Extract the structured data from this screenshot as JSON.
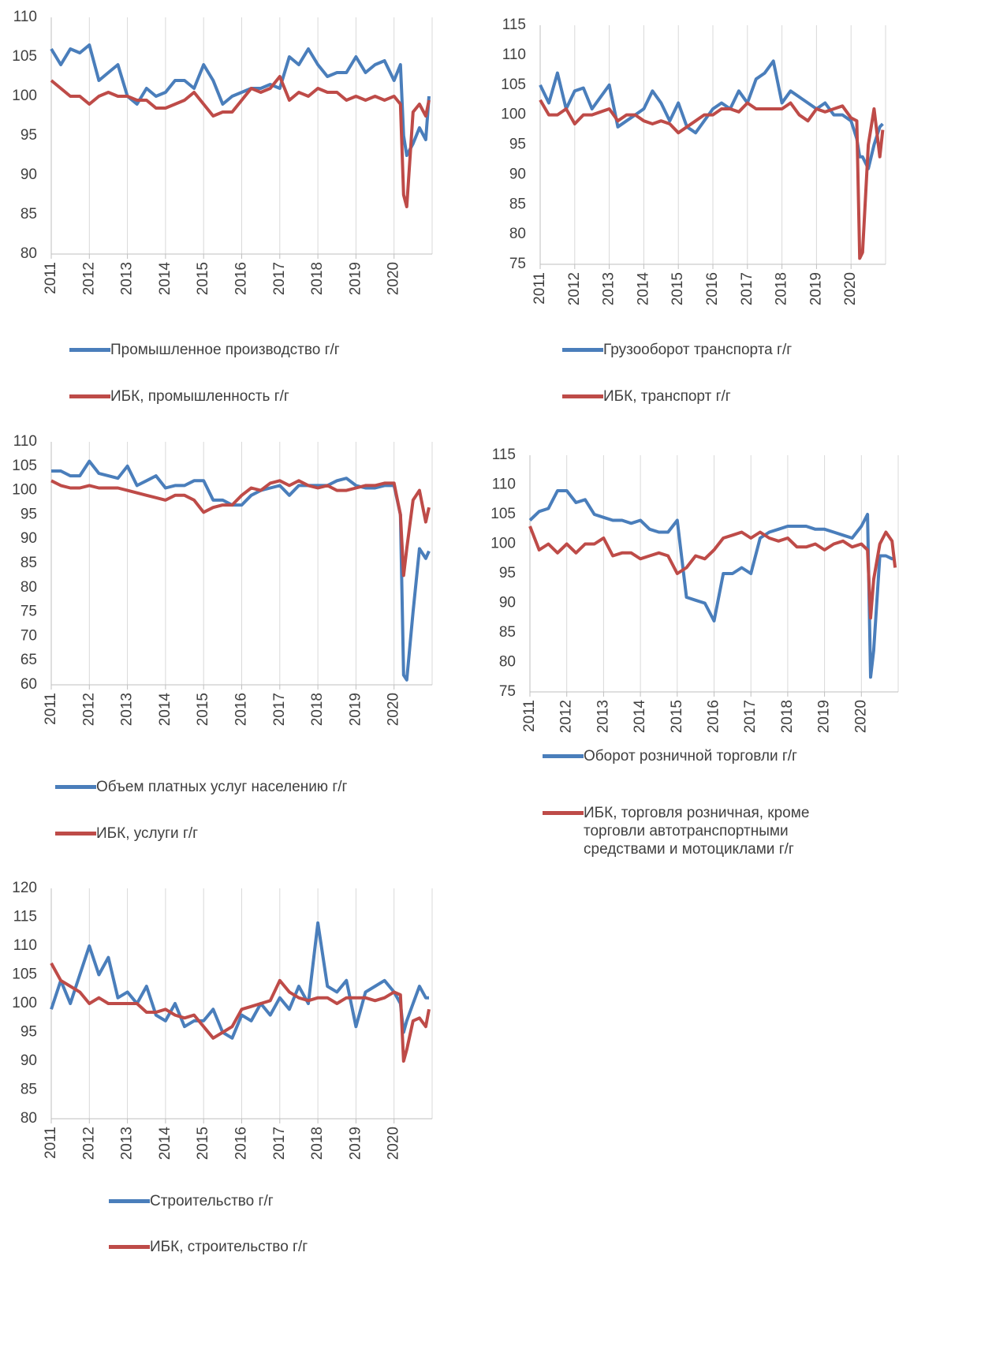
{
  "chart_data": [
    {
      "type": "line",
      "xlim": [
        2011,
        2021
      ],
      "ylim": [
        80,
        110
      ],
      "xticks": [
        2011,
        2012,
        2013,
        2014,
        2015,
        2016,
        2017,
        2018,
        2019,
        2020
      ],
      "yticks": [
        80,
        85,
        90,
        95,
        100,
        105,
        110
      ],
      "grid": true,
      "x": [
        2011,
        2011.25,
        2011.5,
        2011.75,
        2012,
        2012.25,
        2012.5,
        2012.75,
        2013,
        2013.25,
        2013.5,
        2013.75,
        2014,
        2014.25,
        2014.5,
        2014.75,
        2015,
        2015.25,
        2015.5,
        2015.75,
        2016,
        2016.25,
        2016.5,
        2016.75,
        2017,
        2017.25,
        2017.5,
        2017.75,
        2018,
        2018.25,
        2018.5,
        2018.75,
        2019,
        2019.25,
        2019.5,
        2019.75,
        2020,
        2020.167,
        2020.25,
        2020.333,
        2020.5,
        2020.667,
        2020.833,
        2020.917
      ],
      "series": [
        {
          "name": "Промышленное производство г/г",
          "color": "#4a7ebb",
          "values": [
            106,
            104,
            106,
            105.5,
            106.5,
            102,
            103,
            104,
            100,
            99,
            101,
            100,
            100.5,
            102,
            102,
            101,
            104,
            102,
            99,
            100,
            100.5,
            101,
            101,
            101.5,
            101,
            105,
            104,
            106,
            104,
            102.5,
            103,
            103,
            105,
            103,
            104,
            104.5,
            102,
            104,
            95,
            92.5,
            94,
            96,
            94.5,
            100
          ]
        },
        {
          "name": "ИБК, промышленность г/г",
          "color": "#be4b48",
          "values": [
            102,
            101,
            100,
            100,
            99,
            100,
            100.5,
            100,
            100,
            99.5,
            99.5,
            98.5,
            98.5,
            99,
            99.5,
            100.5,
            99,
            97.5,
            98,
            98,
            99.5,
            101,
            100.5,
            101,
            102.5,
            99.5,
            100.5,
            100,
            101,
            100.5,
            100.5,
            99.5,
            100,
            99.5,
            100,
            99.5,
            100,
            99,
            87.5,
            86,
            98,
            99,
            97.5,
            99.5
          ]
        }
      ]
    },
    {
      "type": "line",
      "xlim": [
        2011,
        2021
      ],
      "ylim": [
        75,
        115
      ],
      "xticks": [
        2011,
        2012,
        2013,
        2014,
        2015,
        2016,
        2017,
        2018,
        2019,
        2020
      ],
      "yticks": [
        75,
        80,
        85,
        90,
        95,
        100,
        105,
        110,
        115
      ],
      "grid": true,
      "x": [
        2011,
        2011.25,
        2011.5,
        2011.75,
        2012,
        2012.25,
        2012.5,
        2012.75,
        2013,
        2013.25,
        2013.5,
        2013.75,
        2014,
        2014.25,
        2014.5,
        2014.75,
        2015,
        2015.25,
        2015.5,
        2015.75,
        2016,
        2016.25,
        2016.5,
        2016.75,
        2017,
        2017.25,
        2017.5,
        2017.75,
        2018,
        2018.25,
        2018.5,
        2018.75,
        2019,
        2019.25,
        2019.5,
        2019.75,
        2020,
        2020.167,
        2020.25,
        2020.333,
        2020.5,
        2020.667,
        2020.833,
        2020.917
      ],
      "series": [
        {
          "name": "Грузооборот транспорта г/г",
          "color": "#4a7ebb",
          "values": [
            105,
            102,
            107,
            101,
            104,
            104.5,
            101,
            103,
            105,
            98,
            99,
            100,
            101,
            104,
            102,
            99,
            102,
            98,
            97,
            99,
            101,
            102,
            101,
            104,
            102,
            106,
            107,
            109,
            102,
            104,
            103,
            102,
            101,
            102,
            100,
            100,
            99,
            96,
            93,
            93,
            91,
            95,
            98,
            98.5
          ]
        },
        {
          "name": "ИБК, транспорт г/г",
          "color": "#be4b48",
          "values": [
            102.5,
            100,
            100,
            101,
            98.5,
            100,
            100,
            100.5,
            101,
            99,
            100,
            100,
            99,
            98.5,
            99,
            98.5,
            97,
            98,
            99,
            100,
            100,
            101,
            101,
            100.5,
            102,
            101,
            101,
            101,
            101,
            102,
            100,
            99,
            101,
            100.5,
            101,
            101.5,
            99.5,
            99,
            76,
            77,
            95,
            101,
            93,
            97.5
          ]
        }
      ]
    },
    {
      "type": "line",
      "xlim": [
        2011,
        2021
      ],
      "ylim": [
        60,
        110
      ],
      "xticks": [
        2011,
        2012,
        2013,
        2014,
        2015,
        2016,
        2017,
        2018,
        2019,
        2020
      ],
      "yticks": [
        60,
        65,
        70,
        75,
        80,
        85,
        90,
        95,
        100,
        105,
        110
      ],
      "grid": true,
      "x": [
        2011,
        2011.25,
        2011.5,
        2011.75,
        2012,
        2012.25,
        2012.5,
        2012.75,
        2013,
        2013.25,
        2013.5,
        2013.75,
        2014,
        2014.25,
        2014.5,
        2014.75,
        2015,
        2015.25,
        2015.5,
        2015.75,
        2016,
        2016.25,
        2016.5,
        2016.75,
        2017,
        2017.25,
        2017.5,
        2017.75,
        2018,
        2018.25,
        2018.5,
        2018.75,
        2019,
        2019.25,
        2019.5,
        2019.75,
        2020,
        2020.167,
        2020.25,
        2020.333,
        2020.5,
        2020.667,
        2020.833,
        2020.917
      ],
      "series": [
        {
          "name": "Объем платных услуг населению г/г",
          "color": "#4a7ebb",
          "values": [
            104,
            104,
            103,
            103,
            106,
            103.5,
            103,
            102.5,
            105,
            101,
            102,
            103,
            100.5,
            101,
            101,
            102,
            102,
            98,
            98,
            97,
            97,
            99,
            100,
            100.5,
            101,
            99,
            101,
            101,
            101,
            101,
            102,
            102.5,
            101,
            100.5,
            100.5,
            101,
            101,
            95,
            62,
            61,
            75,
            88,
            86,
            87.5
          ]
        },
        {
          "name": "ИБК, услуги г/г",
          "color": "#be4b48",
          "values": [
            102,
            101,
            100.5,
            100.5,
            101,
            100.5,
            100.5,
            100.5,
            100,
            99.5,
            99,
            98.5,
            98,
            99,
            99,
            98,
            95.5,
            96.5,
            97,
            97,
            99,
            100.5,
            100,
            101.5,
            102,
            101,
            102,
            101,
            100.5,
            101,
            100,
            100,
            100.5,
            101,
            101,
            101.5,
            101.5,
            95,
            82.5,
            88,
            98,
            100,
            93.5,
            96.5
          ]
        }
      ]
    },
    {
      "type": "line",
      "xlim": [
        2011,
        2021
      ],
      "ylim": [
        75,
        115
      ],
      "xticks": [
        2011,
        2012,
        2013,
        2014,
        2015,
        2016,
        2017,
        2018,
        2019,
        2020
      ],
      "yticks": [
        75,
        80,
        85,
        90,
        95,
        100,
        105,
        110,
        115
      ],
      "grid": true,
      "x": [
        2011,
        2011.25,
        2011.5,
        2011.75,
        2012,
        2012.25,
        2012.5,
        2012.75,
        2013,
        2013.25,
        2013.5,
        2013.75,
        2014,
        2014.25,
        2014.5,
        2014.75,
        2015,
        2015.25,
        2015.5,
        2015.75,
        2016,
        2016.25,
        2016.5,
        2016.75,
        2017,
        2017.25,
        2017.5,
        2017.75,
        2018,
        2018.25,
        2018.5,
        2018.75,
        2019,
        2019.25,
        2019.5,
        2019.75,
        2020,
        2020.167,
        2020.25,
        2020.333,
        2020.5,
        2020.667,
        2020.833,
        2020.917
      ],
      "series": [
        {
          "name": "Оборот розничной торговли г/г",
          "color": "#4a7ebb",
          "values": [
            104,
            105.5,
            106,
            109,
            109,
            107,
            107.5,
            105,
            104.5,
            104,
            104,
            103.5,
            104,
            102.5,
            102,
            102,
            104,
            91,
            90.5,
            90,
            87,
            95,
            95,
            96,
            95,
            101,
            102,
            102.5,
            103,
            103,
            103,
            102.5,
            102.5,
            102,
            101.5,
            101,
            103,
            105,
            77.5,
            82,
            98,
            98,
            97.5,
            97.5
          ]
        },
        {
          "name": "ИБК, торговля розничная, кроме торговли автотранспортными средствами и мотоциклами г/г",
          "color": "#be4b48",
          "values": [
            103,
            99,
            100,
            98.5,
            100,
            98.5,
            100,
            100,
            101,
            98,
            98.5,
            98.5,
            97.5,
            98,
            98.5,
            98,
            95,
            96,
            98,
            97.5,
            99,
            101,
            101.5,
            102,
            101,
            102,
            101,
            100.5,
            101,
            99.5,
            99.5,
            100,
            99,
            100,
            100.5,
            99.5,
            100,
            99,
            87.5,
            94,
            100,
            102,
            100.5,
            96
          ]
        }
      ]
    },
    {
      "type": "line",
      "xlim": [
        2011,
        2021
      ],
      "ylim": [
        80,
        120
      ],
      "xticks": [
        2011,
        2012,
        2013,
        2014,
        2015,
        2016,
        2017,
        2018,
        2019,
        2020
      ],
      "yticks": [
        80,
        85,
        90,
        95,
        100,
        105,
        110,
        115,
        120
      ],
      "grid": true,
      "x": [
        2011,
        2011.25,
        2011.5,
        2011.75,
        2012,
        2012.25,
        2012.5,
        2012.75,
        2013,
        2013.25,
        2013.5,
        2013.75,
        2014,
        2014.25,
        2014.5,
        2014.75,
        2015,
        2015.25,
        2015.5,
        2015.75,
        2016,
        2016.25,
        2016.5,
        2016.75,
        2017,
        2017.25,
        2017.5,
        2017.75,
        2018,
        2018.25,
        2018.5,
        2018.75,
        2019,
        2019.25,
        2019.5,
        2019.75,
        2020,
        2020.167,
        2020.25,
        2020.333,
        2020.5,
        2020.667,
        2020.833,
        2020.917
      ],
      "series": [
        {
          "name": "Строительство г/г",
          "color": "#4a7ebb",
          "values": [
            99,
            104,
            100,
            105,
            110,
            105,
            108,
            101,
            102,
            100,
            103,
            98,
            97,
            100,
            96,
            97,
            97,
            99,
            95,
            94,
            98,
            97,
            100,
            98,
            101,
            99,
            103,
            100,
            114,
            103,
            102,
            104,
            96,
            102,
            103,
            104,
            102,
            100,
            95,
            97,
            100,
            103,
            101,
            101
          ]
        },
        {
          "name": "ИБК, строительство г/г",
          "color": "#be4b48",
          "values": [
            107,
            104,
            103,
            102,
            100,
            101,
            100,
            100,
            100,
            100,
            98.5,
            98.5,
            99,
            98,
            97.5,
            98,
            96,
            94,
            95,
            96,
            99,
            99.5,
            100,
            100.5,
            104,
            102,
            101,
            100.5,
            101,
            101,
            100,
            101,
            101,
            101,
            100.5,
            101,
            102,
            101.5,
            90,
            92,
            97,
            97.5,
            96,
            99
          ]
        }
      ]
    }
  ]
}
